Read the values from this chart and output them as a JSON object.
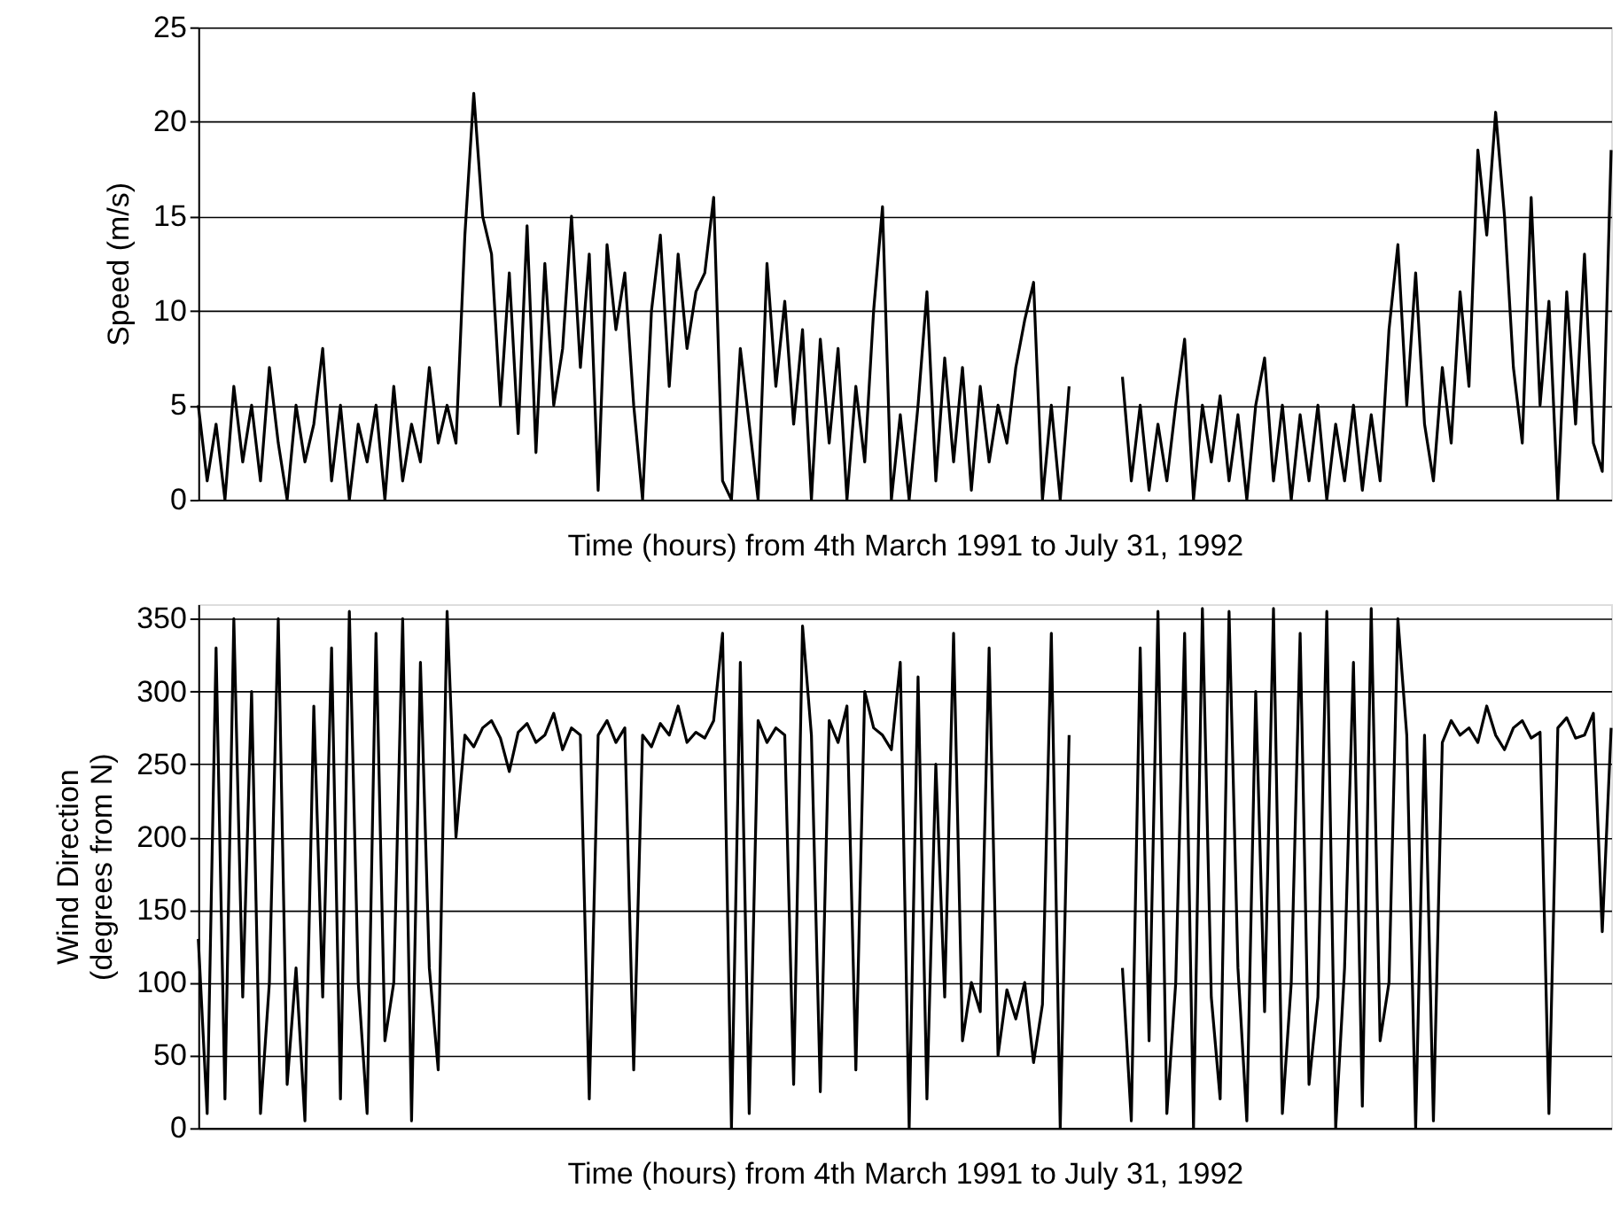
{
  "chart_data": [
    {
      "type": "line",
      "xlabel": "Time (hours) from 4th March 1991 to July 31, 1992",
      "ylabel": "Speed (m/s)",
      "ylim": [
        0,
        25
      ],
      "yticks": [
        0,
        5,
        10,
        15,
        20,
        25
      ],
      "grid": "y",
      "tick_labels": "y",
      "categories": [
        null,
        null,
        null,
        null,
        null,
        null,
        null,
        null,
        null,
        null,
        null,
        null,
        null,
        null,
        null,
        null,
        null,
        null,
        null,
        null,
        null,
        null,
        null,
        null,
        null,
        null,
        null,
        null,
        null,
        null,
        null,
        null,
        null,
        null,
        null,
        null,
        null,
        null,
        null,
        null,
        null,
        null,
        null,
        null,
        null,
        null,
        null,
        null,
        null,
        null,
        null,
        null,
        null,
        null,
        null,
        null,
        null,
        null,
        null,
        null,
        null,
        null,
        null,
        null,
        null,
        null,
        null,
        null,
        null,
        null,
        null,
        null,
        null,
        null,
        null,
        null,
        null,
        null,
        null,
        null,
        null,
        null,
        null,
        null,
        null,
        null,
        null,
        null,
        null,
        null,
        null,
        null,
        null,
        null,
        null,
        null,
        null,
        null,
        null,
        null,
        null,
        null,
        null,
        null,
        null,
        null,
        null,
        null,
        null,
        null,
        null,
        null,
        null,
        null,
        null,
        null,
        null,
        null,
        null,
        null,
        null,
        null,
        null,
        null,
        null,
        null,
        null,
        null,
        null,
        null,
        null,
        null,
        null,
        null,
        null,
        null,
        null,
        null,
        null,
        null,
        null,
        null,
        null,
        null,
        null,
        null,
        null,
        null,
        null,
        null,
        null,
        null,
        null,
        null,
        null,
        null,
        null,
        null,
        null,
        null
      ],
      "series": [
        {
          "color": "#000000",
          "values": [
            5,
            1,
            4,
            0,
            6,
            2,
            5,
            1,
            7,
            3,
            0,
            5,
            2,
            4,
            8,
            1,
            5,
            0,
            4,
            2,
            5,
            0,
            6,
            1,
            4,
            2,
            7,
            3,
            5,
            3,
            14,
            21.5,
            15,
            13,
            5,
            12,
            3.5,
            14.5,
            2.5,
            12.5,
            5,
            8,
            15,
            7,
            13,
            0.5,
            13.5,
            9,
            12,
            5,
            0,
            10,
            14,
            6,
            13,
            8,
            11,
            12,
            16,
            1,
            0,
            8,
            4,
            0,
            12.5,
            6,
            10.5,
            4,
            9,
            0,
            8.5,
            3,
            8,
            0,
            6,
            2,
            10,
            15.5,
            0,
            4.5,
            0,
            5,
            11,
            1,
            7.5,
            2,
            7,
            0.5,
            6,
            2,
            5,
            3,
            7,
            9.5,
            11.5,
            0,
            5,
            0,
            6,
            null,
            null,
            null,
            null,
            null,
            null,
            null,
            null,
            null,
            null,
            null,
            null,
            null,
            null,
            null,
            null,
            null,
            null,
            null,
            null,
            null,
            null,
            null,
            null,
            null,
            null,
            null,
            null,
            null,
            null,
            null,
            null,
            null,
            null,
            null,
            null,
            null,
            null,
            null,
            null,
            null,
            null,
            null,
            null,
            null,
            null,
            null,
            null,
            null,
            null,
            null,
            null,
            null,
            null,
            null,
            null,
            null,
            null,
            null,
            null,
            null
          ]
        },
        {
          "color": "#000000",
          "values": [
            null,
            null,
            null,
            null,
            null,
            null,
            null,
            null,
            null,
            null,
            null,
            null,
            null,
            null,
            null,
            null,
            null,
            null,
            null,
            null,
            null,
            null,
            null,
            null,
            null,
            null,
            null,
            null,
            null,
            null,
            null,
            null,
            null,
            null,
            null,
            null,
            null,
            null,
            null,
            null,
            null,
            null,
            null,
            null,
            null,
            null,
            null,
            null,
            null,
            null,
            null,
            null,
            null,
            null,
            null,
            null,
            null,
            null,
            null,
            null,
            null,
            null,
            null,
            null,
            null,
            null,
            null,
            null,
            null,
            null,
            null,
            null,
            null,
            null,
            null,
            null,
            null,
            null,
            null,
            null,
            null,
            null,
            null,
            null,
            null,
            null,
            null,
            null,
            null,
            null,
            null,
            null,
            null,
            null,
            null,
            null,
            null,
            null,
            null,
            null,
            null,
            null,
            null,
            null,
            6.5,
            1,
            5,
            0.5,
            4,
            1,
            5,
            8.5,
            0,
            5,
            2,
            5.5,
            1,
            4.5,
            0,
            5,
            7.5,
            1,
            5,
            0,
            4.5,
            1,
            5,
            0,
            4,
            1,
            5,
            0.5,
            4.5,
            1,
            9,
            13.5,
            5,
            12,
            4,
            1,
            7,
            3,
            11,
            6,
            18.5,
            14,
            20.5,
            15,
            7,
            3,
            16,
            5,
            10.5,
            0,
            11,
            4,
            13,
            3,
            1.5,
            18.5
          ]
        }
      ]
    },
    {
      "type": "line",
      "xlabel": "Time (hours) from 4th March 1991 to July 31, 1992",
      "ylabel": "Wind Direction\n(degrees from N)",
      "ylim": [
        0,
        360
      ],
      "yticks": [
        0,
        50,
        100,
        150,
        200,
        250,
        300,
        350
      ],
      "grid": "y",
      "tick_labels": "y",
      "categories": [
        null,
        null,
        null,
        null,
        null,
        null,
        null,
        null,
        null,
        null,
        null,
        null,
        null,
        null,
        null,
        null,
        null,
        null,
        null,
        null,
        null,
        null,
        null,
        null,
        null,
        null,
        null,
        null,
        null,
        null,
        null,
        null,
        null,
        null,
        null,
        null,
        null,
        null,
        null,
        null,
        null,
        null,
        null,
        null,
        null,
        null,
        null,
        null,
        null,
        null,
        null,
        null,
        null,
        null,
        null,
        null,
        null,
        null,
        null,
        null,
        null,
        null,
        null,
        null,
        null,
        null,
        null,
        null,
        null,
        null,
        null,
        null,
        null,
        null,
        null,
        null,
        null,
        null,
        null,
        null,
        null,
        null,
        null,
        null,
        null,
        null,
        null,
        null,
        null,
        null,
        null,
        null,
        null,
        null,
        null,
        null,
        null,
        null,
        null,
        null,
        null,
        null,
        null,
        null,
        null,
        null,
        null,
        null,
        null,
        null,
        null,
        null,
        null,
        null,
        null,
        null,
        null,
        null,
        null,
        null,
        null,
        null,
        null,
        null,
        null,
        null,
        null,
        null,
        null,
        null,
        null,
        null,
        null,
        null,
        null,
        null,
        null,
        null,
        null,
        null,
        null,
        null,
        null,
        null,
        null,
        null,
        null,
        null,
        null,
        null,
        null,
        null,
        null,
        null,
        null,
        null,
        null,
        null,
        null,
        null
      ],
      "series": [
        {
          "color": "#000000",
          "values": [
            130,
            10,
            330,
            20,
            350,
            90,
            300,
            10,
            100,
            350,
            30,
            110,
            5,
            290,
            90,
            330,
            20,
            355,
            100,
            10,
            340,
            60,
            100,
            350,
            5,
            320,
            110,
            40,
            355,
            200,
            270,
            262,
            275,
            280,
            268,
            245,
            272,
            278,
            265,
            270,
            285,
            260,
            275,
            270,
            20,
            270,
            280,
            265,
            275,
            40,
            270,
            262,
            278,
            270,
            290,
            265,
            272,
            268,
            280,
            340,
            0,
            320,
            10,
            280,
            265,
            275,
            270,
            30,
            345,
            270,
            25,
            280,
            265,
            290,
            40,
            300,
            275,
            270,
            260,
            320,
            0,
            310,
            20,
            250,
            90,
            340,
            60,
            100,
            80,
            330,
            50,
            95,
            75,
            100,
            45,
            85,
            340,
            0,
            270,
            null,
            null,
            null,
            null,
            null,
            null,
            null,
            null,
            null,
            null,
            null,
            null,
            null,
            null,
            null,
            null,
            null,
            null,
            null,
            null,
            null,
            null,
            null,
            null,
            null,
            null,
            null,
            null,
            null,
            null,
            null,
            null,
            null,
            null,
            null,
            null,
            null,
            null,
            null,
            null,
            null,
            null,
            null,
            null,
            null,
            null,
            null,
            null,
            null,
            null,
            null,
            null,
            null,
            null,
            null,
            null,
            null,
            null,
            null,
            null,
            null
          ]
        },
        {
          "color": "#000000",
          "values": [
            null,
            null,
            null,
            null,
            null,
            null,
            null,
            null,
            null,
            null,
            null,
            null,
            null,
            null,
            null,
            null,
            null,
            null,
            null,
            null,
            null,
            null,
            null,
            null,
            null,
            null,
            null,
            null,
            null,
            null,
            null,
            null,
            null,
            null,
            null,
            null,
            null,
            null,
            null,
            null,
            null,
            null,
            null,
            null,
            null,
            null,
            null,
            null,
            null,
            null,
            null,
            null,
            null,
            null,
            null,
            null,
            null,
            null,
            null,
            null,
            null,
            null,
            null,
            null,
            null,
            null,
            null,
            null,
            null,
            null,
            null,
            null,
            null,
            null,
            null,
            null,
            null,
            null,
            null,
            null,
            null,
            null,
            null,
            null,
            null,
            null,
            null,
            null,
            null,
            null,
            null,
            null,
            null,
            null,
            null,
            null,
            null,
            null,
            null,
            null,
            null,
            null,
            null,
            null,
            110,
            5,
            330,
            60,
            355,
            10,
            100,
            340,
            0,
            357,
            90,
            20,
            355,
            110,
            5,
            300,
            80,
            357,
            10,
            100,
            340,
            30,
            90,
            355,
            0,
            110,
            320,
            15,
            357,
            60,
            100,
            350,
            270,
            0,
            270,
            5,
            265,
            280,
            270,
            275,
            265,
            290,
            270,
            260,
            275,
            280,
            268,
            272,
            10,
            275,
            282,
            268,
            270,
            285,
            135,
            275
          ]
        }
      ]
    }
  ]
}
